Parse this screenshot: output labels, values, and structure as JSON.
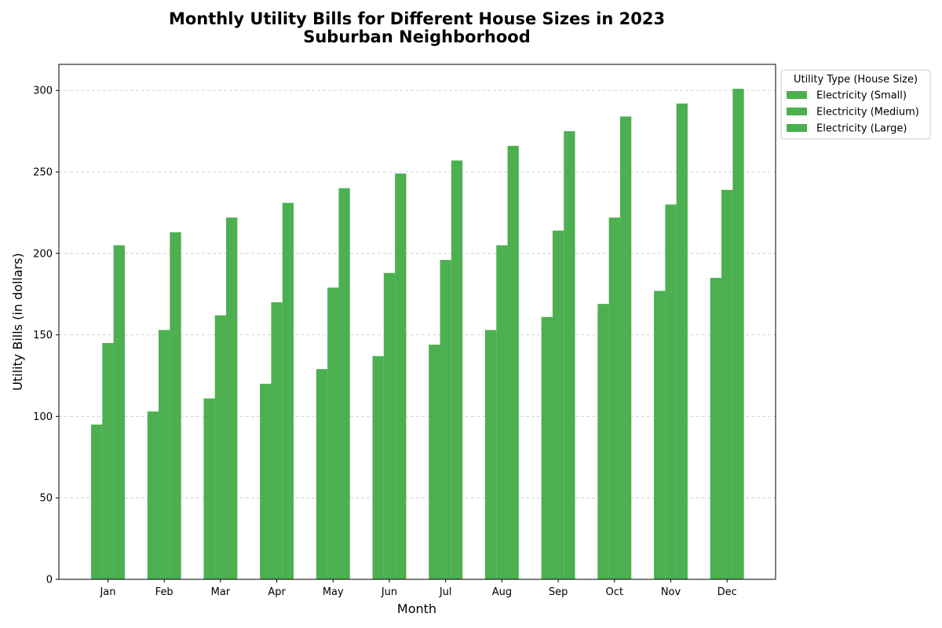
{
  "chart_data": {
    "type": "bar",
    "title": "Monthly Utility Bills for Different House Sizes in 2023",
    "subtitle": "Suburban Neighborhood",
    "xlabel": "Month",
    "ylabel": "Utility Bills (in dollars)",
    "categories": [
      "Jan",
      "Feb",
      "Mar",
      "Apr",
      "May",
      "Jun",
      "Jul",
      "Aug",
      "Sep",
      "Oct",
      "Nov",
      "Dec"
    ],
    "series": [
      {
        "name": "Electricity (Small)",
        "color": "#4caf50",
        "values": [
          95,
          103,
          111,
          120,
          129,
          137,
          144,
          153,
          161,
          169,
          177,
          185
        ]
      },
      {
        "name": "Electricity (Medium)",
        "color": "#4caf50",
        "values": [
          145,
          153,
          162,
          170,
          179,
          188,
          196,
          205,
          214,
          222,
          230,
          239
        ]
      },
      {
        "name": "Electricity (Large)",
        "color": "#4caf50",
        "values": [
          205,
          213,
          222,
          231,
          240,
          249,
          257,
          266,
          275,
          284,
          292,
          301
        ]
      }
    ],
    "yticks": [
      0,
      50,
      100,
      150,
      200,
      250,
      300
    ],
    "ylim": [
      0,
      316
    ],
    "grid": true,
    "legend_title": "Utility Type (House Size)",
    "legend_position": "upper-right-outside"
  }
}
